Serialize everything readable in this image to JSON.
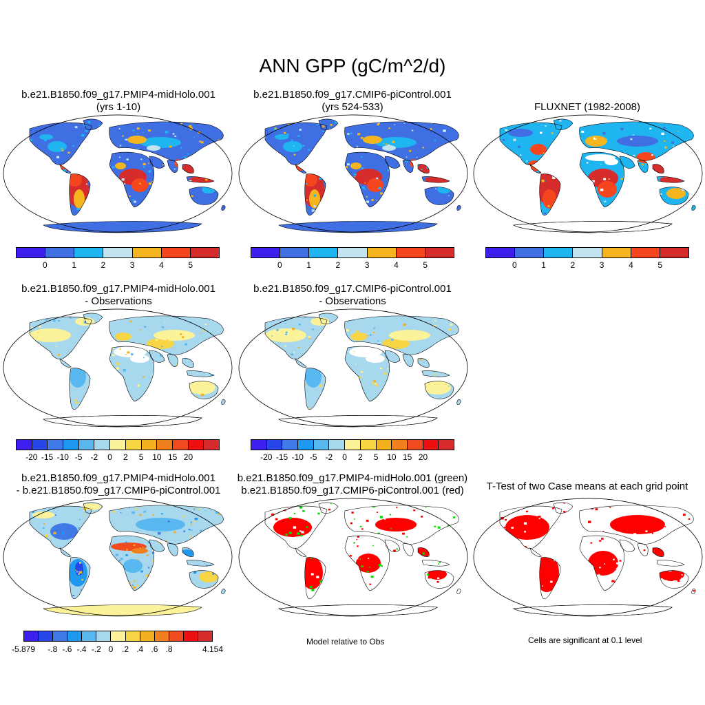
{
  "title": "ANN GPP (gC/m^2/d)",
  "colors": {
    "abs": [
      "#3d1ff0",
      "#3f6fe3",
      "#1fb5f0",
      "#c3e3f0",
      "#f5b51f",
      "#f5461f",
      "#d62c2c"
    ],
    "diff": [
      "#3d1ff0",
      "#2847e8",
      "#3f7ae6",
      "#1f98f0",
      "#5ab8f0",
      "#a8d8ee",
      "#fbf29a",
      "#f7d545",
      "#f5b01f",
      "#f0801f",
      "#f04a1f",
      "#ee1010",
      "#d62c2c"
    ],
    "rel": [
      "#3d1ff0",
      "#2847e8",
      "#3f7ae6",
      "#1f98f0",
      "#5ab8f0",
      "#a8d8ee",
      "#fbf29a",
      "#f7d545",
      "#f5b01f",
      "#f0801f",
      "#f04a1f",
      "#ee1010",
      "#d62c2c"
    ]
  },
  "panels": {
    "p1": {
      "line1": "b.e21.B1850.f09_g17.PMIP4-midHolo.001",
      "line2": "(yrs 1-10)"
    },
    "p2": {
      "line1": "b.e21.B1850.f09_g17.CMIP6-piControl.001",
      "line2": "(yrs 524-533)"
    },
    "p3": {
      "line1": "FLUXNET (1982-2008)"
    },
    "p4": {
      "line1": "b.e21.B1850.f09_g17.PMIP4-midHolo.001",
      "line2": "- Observations"
    },
    "p5": {
      "line1": "b.e21.B1850.f09_g17.CMIP6-piControl.001",
      "line2": "- Observations"
    },
    "p6": {
      "line1": "b.e21.B1850.f09_g17.PMIP4-midHolo.001",
      "line2": "- b.e21.B1850.f09_g17.CMIP6-piControl.001"
    },
    "p7": {
      "line1": "b.e21.B1850.f09_g17.PMIP4-midHolo.001 (green)",
      "line2": "b.e21.B1850.f09_g17.CMIP6-piControl.001 (red)"
    },
    "p8": {
      "line1": "T-Test of two Case means at each grid point"
    }
  },
  "ticks": {
    "abs": [
      "0",
      "1",
      "2",
      "3",
      "4",
      "5"
    ],
    "diff": [
      "-20",
      "-15",
      "-10",
      "-5",
      "-2",
      "0",
      "2",
      "5",
      "10",
      "15",
      "20"
    ],
    "rel": [
      "-5.879",
      "-.8",
      "-.6",
      "-.4",
      "-.2",
      "0",
      ".2",
      ".4",
      ".6",
      ".8",
      "4.154"
    ]
  },
  "notes": {
    "model_rel": "Model relative to Obs",
    "significant": "Cells are significant at 0.1 level"
  }
}
